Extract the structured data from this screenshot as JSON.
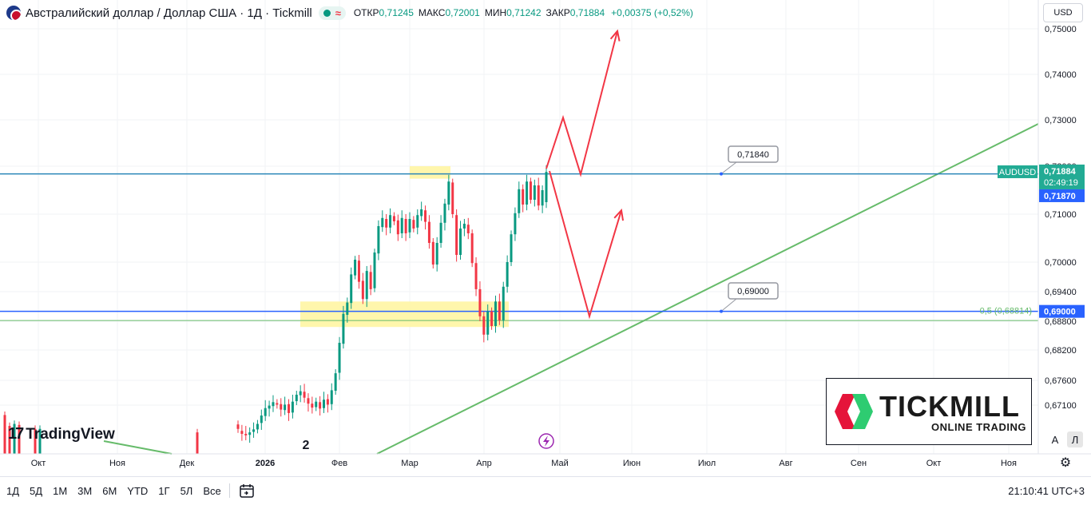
{
  "legend": {
    "title": "Австралийский доллар / Доллар США · 1Д · Tickmill",
    "open_label": "ОТКР",
    "open": "0,71245",
    "high_label": "МАКС",
    "high": "0,72001",
    "low_label": "МИН",
    "low": "0,71242",
    "close_label": "ЗАКР",
    "close": "0,71884",
    "change": "+0,00375 (+0,52%)"
  },
  "currency": "USD",
  "branding": {
    "tradingview": "TradingView",
    "tickmill_name": "TICKMILL",
    "tickmill_sub": "ONLINE TRADING"
  },
  "scale_buttons": {
    "auto": "A",
    "log": "Л"
  },
  "timeframes": [
    "1Д",
    "5Д",
    "1М",
    "3М",
    "6М",
    "YTD",
    "1Г",
    "5Л",
    "Все"
  ],
  "clock": "21:10:41 UTC+3",
  "colors": {
    "up": "#089981",
    "down": "#f23645",
    "blue_line": "#2962ff",
    "teal_line": "#2a86b8",
    "trend": "#66bb6a",
    "zone": "#fff59d",
    "arrows": "#f23645"
  },
  "chart_data": {
    "type": "candlestick",
    "symbol": "AUDUSD",
    "y_ticks": [
      "0,75000",
      "0,74000",
      "0,73000",
      "0,72000",
      "0,71000",
      "0,70000",
      "0,69400",
      "0,68800",
      "0,68200",
      "0,67600",
      "0,67100"
    ],
    "x_ticks": [
      "Окт",
      "Ноя",
      "Дек",
      "2026",
      "Фев",
      "Мар",
      "Апр",
      "Май",
      "Июн",
      "Июл",
      "Авг",
      "Сен",
      "Окт",
      "Ноя"
    ],
    "last_price": "0,71884",
    "countdown": "02:49:19",
    "bid_price": "0,71870",
    "levels": [
      {
        "label": "0,71840",
        "price": 0.7184
      },
      {
        "label": "0,69000",
        "price": 0.69
      }
    ],
    "fib": {
      "label": "0,5 (0,68814)",
      "price": 0.68814
    },
    "wave_label": "2",
    "candle_path": [
      [
        0.6671,
        0.6662
      ],
      [
        0.6658,
        0.6652
      ],
      [
        0.6652,
        0.6649
      ],
      [
        0.665,
        0.6655
      ],
      [
        0.6656,
        0.6661
      ],
      [
        0.6661,
        0.6672
      ],
      [
        0.6674,
        0.6689
      ],
      [
        0.6688,
        0.6704
      ],
      [
        0.6703,
        0.6709
      ],
      [
        0.6708,
        0.6716
      ],
      [
        0.6714,
        0.6711
      ],
      [
        0.6712,
        0.6701
      ],
      [
        0.67,
        0.6711
      ],
      [
        0.6712,
        0.6694
      ],
      [
        0.6695,
        0.6717
      ],
      [
        0.6718,
        0.6731
      ],
      [
        0.673,
        0.6738
      ],
      [
        0.6737,
        0.6725
      ],
      [
        0.6724,
        0.6713
      ],
      [
        0.6713,
        0.6705
      ],
      [
        0.6706,
        0.6717
      ],
      [
        0.6716,
        0.6703
      ],
      [
        0.6704,
        0.6721
      ],
      [
        0.6722,
        0.6711
      ],
      [
        0.6712,
        0.674
      ],
      [
        0.6739,
        0.6774
      ],
      [
        0.6775,
        0.6835
      ],
      [
        0.6833,
        0.6895
      ],
      [
        0.6893,
        0.6918
      ],
      [
        0.6917,
        0.6975
      ],
      [
        0.6973,
        0.7005
      ],
      [
        0.7003,
        0.696
      ],
      [
        0.6962,
        0.6925
      ],
      [
        0.6925,
        0.6982
      ],
      [
        0.698,
        0.6945
      ],
      [
        0.6947,
        0.702
      ],
      [
        0.7018,
        0.7075
      ],
      [
        0.7073,
        0.7092
      ],
      [
        0.709,
        0.7072
      ],
      [
        0.7072,
        0.7098
      ],
      [
        0.7096,
        0.7085
      ],
      [
        0.7087,
        0.7058
      ],
      [
        0.706,
        0.7092
      ],
      [
        0.709,
        0.706
      ],
      [
        0.7062,
        0.709
      ],
      [
        0.7088,
        0.707
      ],
      [
        0.7072,
        0.7098
      ],
      [
        0.7096,
        0.711
      ],
      [
        0.7108,
        0.7084
      ],
      [
        0.7084,
        0.704
      ],
      [
        0.7042,
        0.6995
      ],
      [
        0.6995,
        0.704
      ],
      [
        0.704,
        0.7082
      ],
      [
        0.7082,
        0.7122
      ],
      [
        0.712,
        0.7168
      ],
      [
        0.7166,
        0.71
      ],
      [
        0.7098,
        0.7015
      ],
      [
        0.7015,
        0.707
      ],
      [
        0.707,
        0.708
      ],
      [
        0.7078,
        0.706
      ],
      [
        0.706,
        0.6998
      ],
      [
        0.6998,
        0.6945
      ],
      [
        0.6945,
        0.689
      ],
      [
        0.689,
        0.6852
      ],
      [
        0.6852,
        0.69
      ],
      [
        0.69,
        0.687
      ],
      [
        0.687,
        0.692
      ],
      [
        0.692,
        0.6882
      ],
      [
        0.6882,
        0.695
      ],
      [
        0.695,
        0.7
      ],
      [
        0.7,
        0.7058
      ],
      [
        0.7058,
        0.7102
      ],
      [
        0.7102,
        0.7152
      ],
      [
        0.7152,
        0.712
      ],
      [
        0.712,
        0.7168
      ],
      [
        0.7168,
        0.713
      ],
      [
        0.713,
        0.716
      ],
      [
        0.716,
        0.7118
      ],
      [
        0.7118,
        0.715
      ],
      [
        0.7125,
        0.7188
      ]
    ],
    "projection_up": [
      [
        0.7195,
        0.7305
      ],
      [
        0.7305,
        0.7183
      ],
      [
        0.7183,
        0.7495
      ]
    ],
    "projection_down": [
      [
        0.719,
        0.689
      ],
      [
        0.689,
        0.7108
      ]
    ]
  }
}
